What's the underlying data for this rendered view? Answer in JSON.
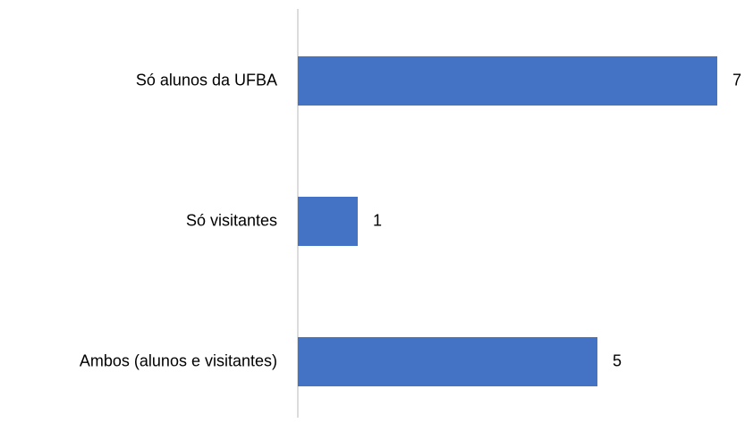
{
  "chart_data": {
    "type": "bar",
    "orientation": "horizontal",
    "categories": [
      "Só alunos da UFBA",
      "Só visitantes",
      "Ambos (alunos e visitantes)"
    ],
    "values": [
      7,
      1,
      5
    ],
    "color": "#4472c4"
  }
}
